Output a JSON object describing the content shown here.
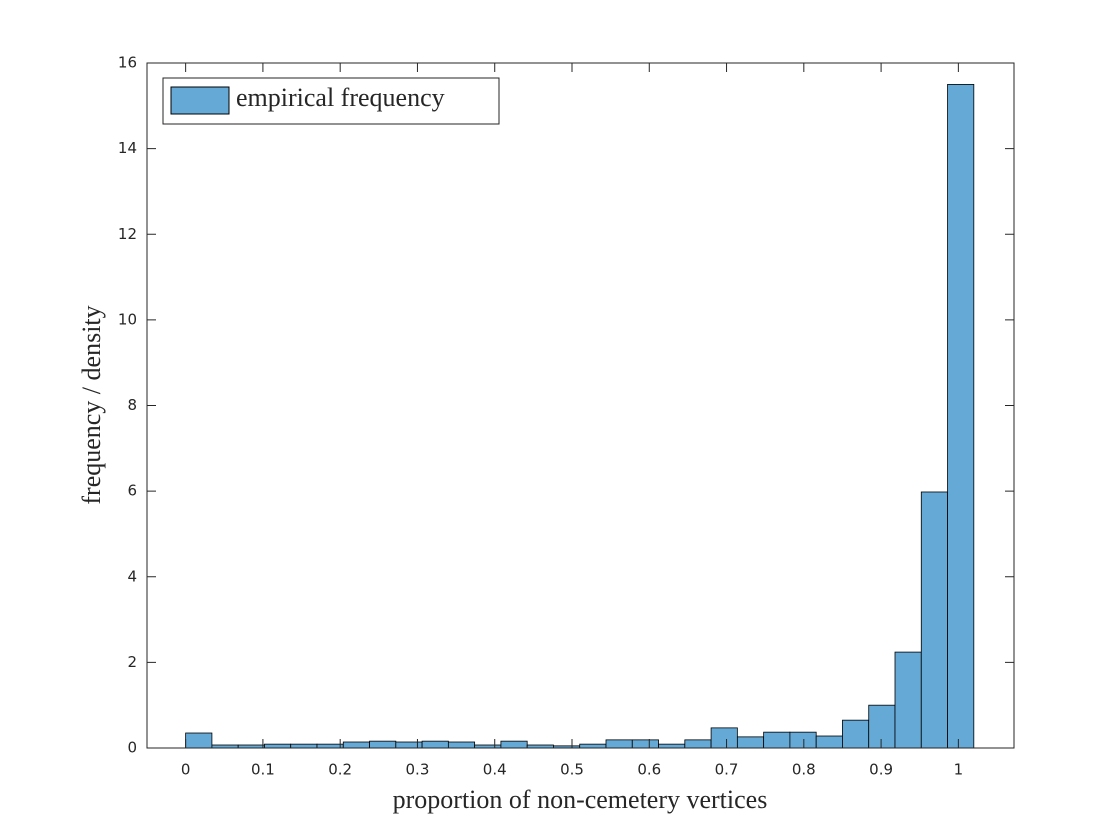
{
  "chart_data": {
    "type": "histogram",
    "xlabel": "proportion of non-cemetery vertices",
    "ylabel": "frequency / density",
    "bins": [
      0,
      0.034,
      0.068,
      0.102,
      0.136,
      0.17,
      0.204,
      0.238,
      0.272,
      0.306,
      0.34,
      0.374,
      0.408,
      0.442,
      0.476,
      0.51,
      0.544,
      0.578,
      0.612,
      0.646,
      0.68,
      0.714,
      0.748,
      0.782,
      0.816,
      0.85,
      0.884,
      0.918,
      0.952,
      0.986,
      1.02
    ],
    "series": [
      {
        "name": "empirical frequency",
        "color": "#65a9d7",
        "values": [
          0.35,
          0.07,
          0.07,
          0.09,
          0.09,
          0.09,
          0.14,
          0.16,
          0.14,
          0.16,
          0.14,
          0.07,
          0.16,
          0.07,
          0.05,
          0.09,
          0.19,
          0.19,
          0.09,
          0.19,
          0.47,
          0.26,
          0.37,
          0.37,
          0.28,
          0.65,
          1.0,
          2.24,
          5.98,
          15.5
        ]
      }
    ],
    "xlim": [
      -0.05,
      1.072
    ],
    "xticks": [
      0,
      0.1,
      0.2,
      0.3,
      0.4,
      0.5,
      0.6,
      0.7,
      0.8,
      0.9,
      1
    ],
    "ylim": [
      0,
      16
    ],
    "yticks": [
      0,
      2,
      4,
      6,
      8,
      10,
      12,
      14,
      16
    ],
    "legend": "upper left"
  }
}
